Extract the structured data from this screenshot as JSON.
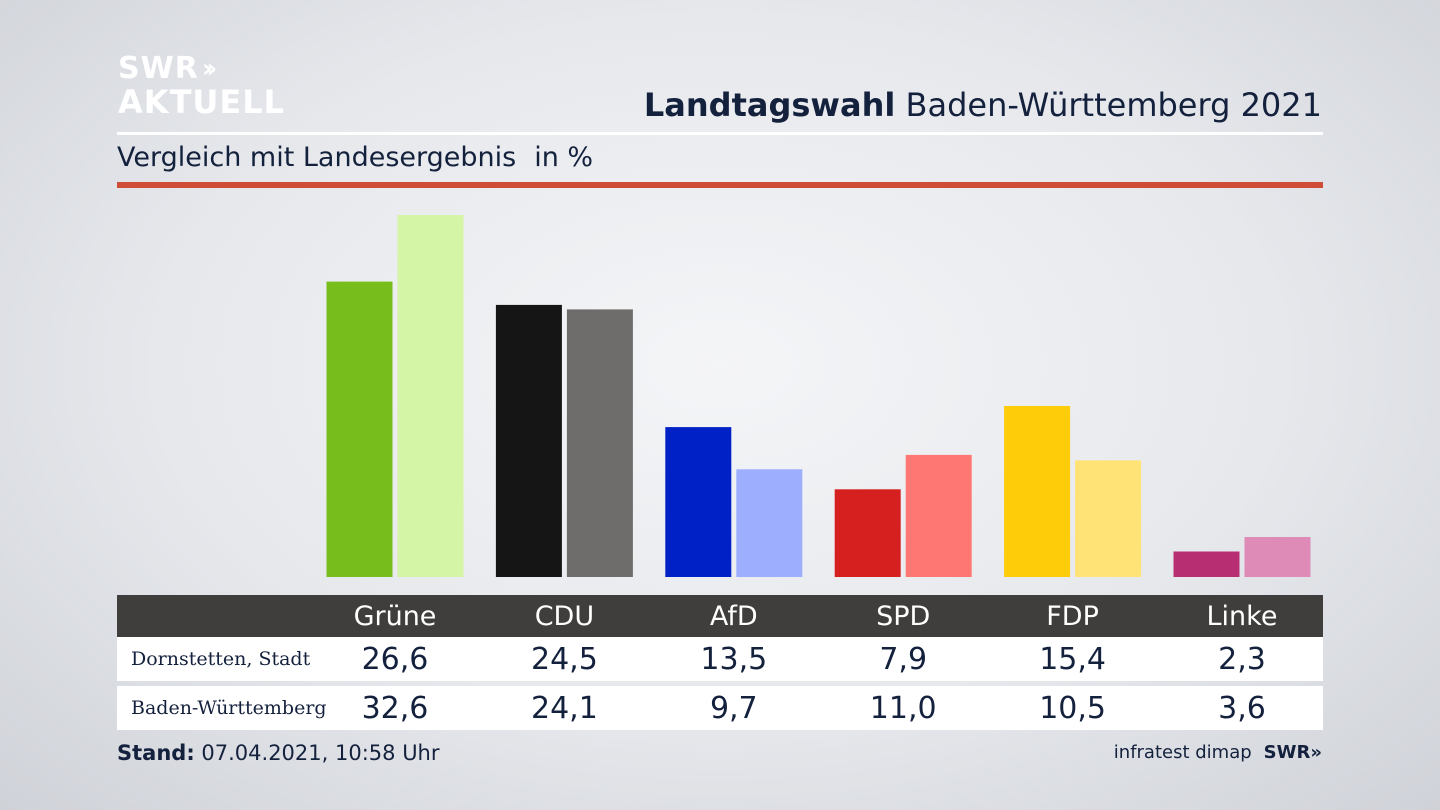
{
  "header": {
    "logo_line1": "SWR",
    "logo_line2": "AKTUELL",
    "title_bold": "Landtagswahl",
    "title_rest": "Baden-Württemberg 2021",
    "subtitle": "Vergleich mit Landesergebnis",
    "unit": "in %"
  },
  "footer": {
    "stand_label": "Stand:",
    "stand_value": "07.04.2021, 10:58 Uhr",
    "source": "infratest dimap",
    "source_logo": "SWR"
  },
  "chart_data": {
    "type": "bar",
    "categories": [
      "Grüne",
      "CDU",
      "AfD",
      "SPD",
      "FDP",
      "Linke"
    ],
    "series": [
      {
        "name": "Dornstetten, Stadt",
        "values": [
          26.6,
          24.5,
          13.5,
          7.9,
          15.4,
          2.3
        ],
        "value_labels": [
          "26,6",
          "24,5",
          "13,5",
          "7,9",
          "15,4",
          "2,3"
        ]
      },
      {
        "name": "Baden-Württemberg",
        "values": [
          32.6,
          24.1,
          9.7,
          11.0,
          10.5,
          3.6
        ],
        "value_labels": [
          "32,6",
          "24,1",
          "9,7",
          "11,0",
          "10,5",
          "3,6"
        ]
      }
    ],
    "colors": {
      "Dornstetten, Stadt": [
        "#77bd1b",
        "#151515",
        "#0021c6",
        "#d62020",
        "#ffcc0a",
        "#b82e73"
      ],
      "Baden-Württemberg": [
        "#d4f4a6",
        "#6f6d6b",
        "#9eaeff",
        "#fe7773",
        "#ffe376",
        "#df8bb8"
      ]
    },
    "ylim": [
      0,
      32.6
    ],
    "grid": false
  }
}
